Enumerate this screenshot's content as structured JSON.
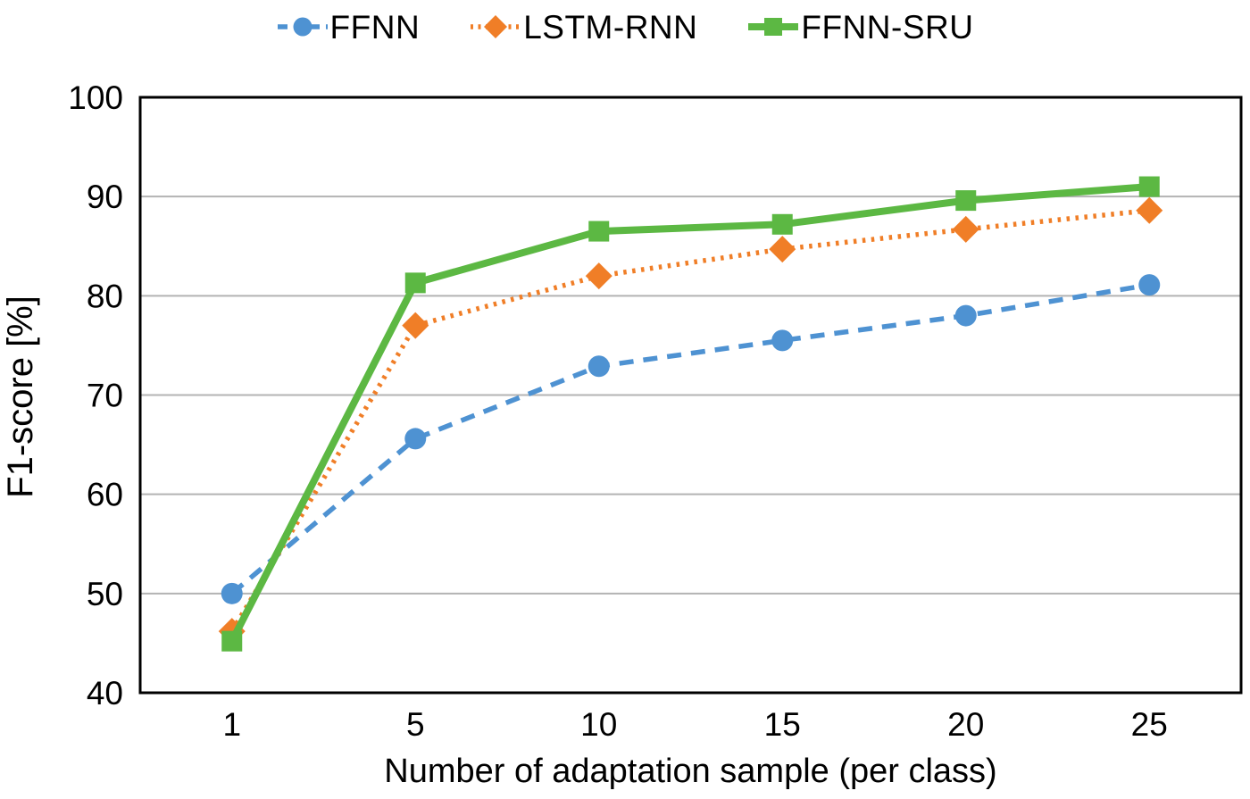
{
  "chart_data": {
    "type": "line",
    "title": "",
    "categories": [
      1,
      5,
      10,
      15,
      20,
      25
    ],
    "series": [
      {
        "name": "FFNN",
        "color": "#4E92D2",
        "line_style": "dashed",
        "marker": "circle",
        "values": [
          50.0,
          65.6,
          72.9,
          75.5,
          78.0,
          81.1
        ]
      },
      {
        "name": "LSTM-RNN",
        "color": "#F07E27",
        "line_style": "dotted",
        "marker": "diamond",
        "values": [
          46.2,
          77.0,
          82.0,
          84.7,
          86.7,
          88.6
        ]
      },
      {
        "name": "FFNN-SRU",
        "color": "#5CB843",
        "line_style": "solid",
        "marker": "square",
        "values": [
          45.2,
          81.3,
          86.5,
          87.2,
          89.6,
          91.0
        ]
      }
    ],
    "xlabel": "Number of adaptation sample (per class)",
    "ylabel": "F1-score [%]",
    "ylim": [
      40,
      100
    ],
    "yticks": [
      40,
      50,
      60,
      70,
      80,
      90,
      100
    ],
    "xtick_labels": [
      "1",
      "5",
      "10",
      "15",
      "20",
      "25"
    ],
    "grid": "horizontal",
    "legend_position": "top",
    "axis_color": "#000000",
    "gridline_color": "#b3b3b3",
    "text_color": "#000000",
    "background_color": "#ffffff"
  }
}
